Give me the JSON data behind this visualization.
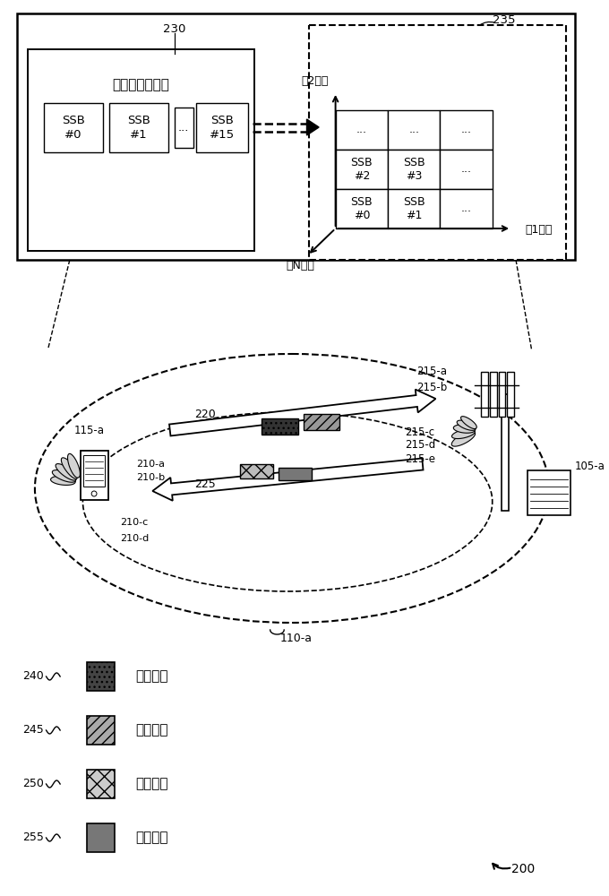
{
  "bg_color": "#ffffff",
  "label_230": "230",
  "label_235": "235",
  "label_200": "200",
  "label_110a": "110-a",
  "ssb_box_title": "信道测量资源集",
  "dim1_label": "第1维度",
  "dim2_label": "第2维度",
  "dimN_label": "第N维度",
  "grid_cells": [
    [
      "...",
      "...",
      "..."
    ],
    [
      "SSB\n#2",
      "SSB\n#3",
      "..."
    ],
    [
      "SSB\n#0",
      "SSB\n#1",
      "..."
    ]
  ],
  "legend_items": [
    {
      "id": "240",
      "label": "控制信令",
      "hatch": "..."
    },
    {
      "id": "245",
      "label": "参考信号",
      "hatch": "///"
    },
    {
      "id": "250",
      "label": "能力消息",
      "hatch": "xx"
    },
    {
      "id": "255",
      "label": "波束报告",
      "hatch": "==="
    }
  ],
  "scene_labels": {
    "115a": "115-a",
    "105a": "105-a",
    "210a": "210-a",
    "210b": "210-b",
    "210c": "210-c",
    "210d": "210-d",
    "215a": "215-a",
    "215b": "215-b",
    "215c": "215-c",
    "215d": "215-d",
    "215e": "215-e",
    "220": "220",
    "225": "225"
  }
}
